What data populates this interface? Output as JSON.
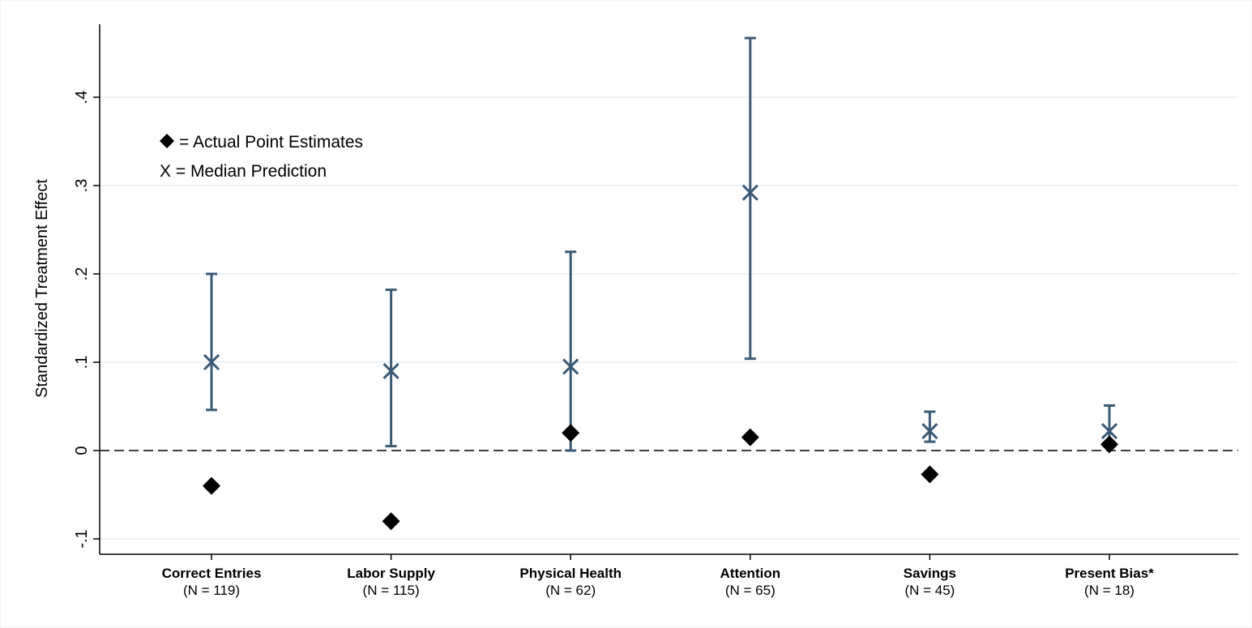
{
  "chart_data": {
    "type": "scatter",
    "ylabel": "Standardized Treatment Effect",
    "ylim": [
      -0.11,
      0.48
    ],
    "yticks": [
      -0.1,
      0,
      0.1,
      0.2,
      0.3,
      0.4
    ],
    "ytick_labels": [
      "-.1",
      "0",
      ".1",
      ".2",
      ".3",
      ".4"
    ],
    "grid": true,
    "reference_line": 0,
    "legend": {
      "placement": "top-left",
      "entries": [
        "= Actual Point Estimates",
        "X = Median Prediction"
      ]
    },
    "categories": [
      "Correct Entries",
      "Labor Supply",
      "Physical Health",
      "Attention",
      "Savings",
      "Present Bias*"
    ],
    "n_labels": [
      "(N = 119)",
      "(N = 115)",
      "(N = 62)",
      "(N = 65)",
      "(N = 45)",
      "(N = 18)"
    ],
    "series": [
      {
        "name": "Actual Point Estimates",
        "values": [
          -0.04,
          -0.08,
          0.02,
          0.015,
          -0.027,
          0.007
        ]
      },
      {
        "name": "Median Prediction",
        "values": [
          0.1,
          0.09,
          0.095,
          0.292,
          0.022,
          0.022
        ]
      }
    ],
    "error_bars": {
      "low": [
        0.046,
        0.005,
        0.0,
        0.104,
        0.01,
        0.007
      ],
      "high": [
        0.2,
        0.182,
        0.225,
        0.467,
        0.044,
        0.051
      ]
    },
    "colors": {
      "prediction": "#3d5a75",
      "actual": "#000000",
      "grid": "#e6eef2",
      "axis": "#000000"
    }
  }
}
